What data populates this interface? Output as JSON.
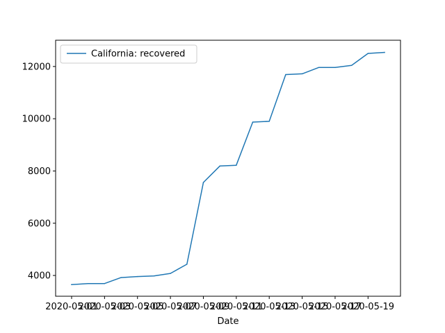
{
  "chart_data": {
    "type": "line",
    "title": "",
    "xlabel": "Date",
    "ylabel": "",
    "x": [
      "2020-05-01",
      "2020-05-02",
      "2020-05-03",
      "2020-05-04",
      "2020-05-05",
      "2020-05-06",
      "2020-05-07",
      "2020-05-08",
      "2020-05-09",
      "2020-05-10",
      "2020-05-11",
      "2020-05-12",
      "2020-05-13",
      "2020-05-14",
      "2020-05-15",
      "2020-05-16",
      "2020-05-17",
      "2020-05-18",
      "2020-05-19",
      "2020-05-20"
    ],
    "series": [
      {
        "name": "California: recovered",
        "color": "#1f77b4",
        "values": [
          3650,
          3690,
          3690,
          3920,
          3960,
          3980,
          4080,
          4430,
          7560,
          8190,
          8220,
          9870,
          9900,
          11690,
          11720,
          11960,
          11960,
          12040,
          12500,
          12540
        ]
      }
    ],
    "xticks": [
      "2020-05-01",
      "2020-05-03",
      "2020-05-05",
      "2020-05-07",
      "2020-05-09",
      "2020-05-11",
      "2020-05-13",
      "2020-05-15",
      "2020-05-17",
      "2020-05-19"
    ],
    "yticks": [
      4000,
      6000,
      8000,
      10000,
      12000
    ],
    "ylim": [
      3205,
      13005
    ],
    "grid": false,
    "legend_position": "upper-left"
  }
}
